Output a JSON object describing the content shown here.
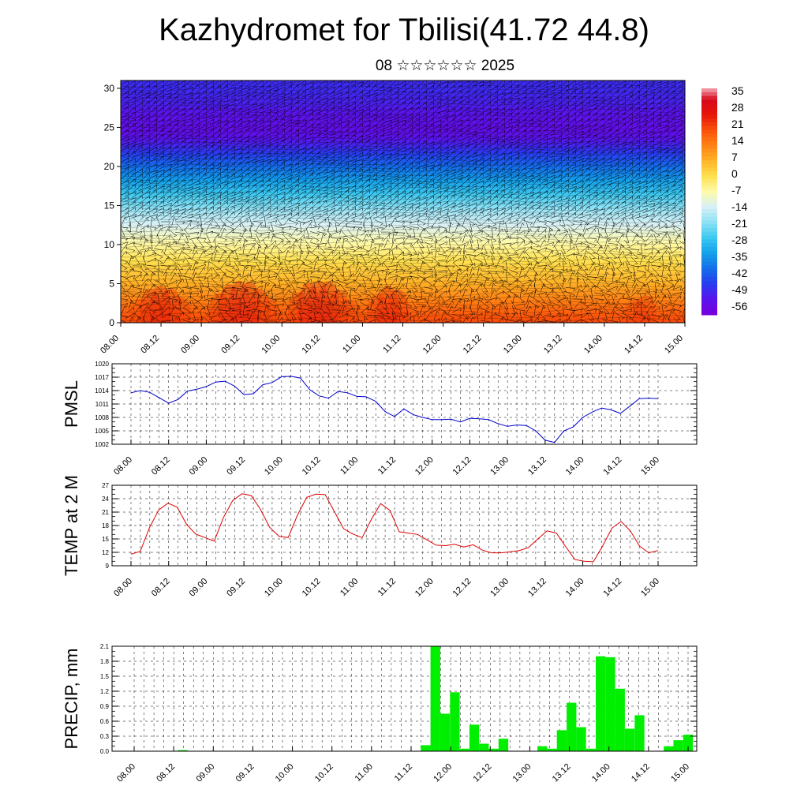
{
  "title": "Kazhydromet for Tbilisi(41.72 44.8)",
  "subtitle": "08 ☆☆☆☆☆☆ 2025",
  "colors": {
    "pmsl": "#0000cc",
    "temp": "#dd0000",
    "precip": "#00ee00",
    "grid": "#000000"
  },
  "chart_data": [
    {
      "type": "heatmap",
      "name": "upper-air-cross-section",
      "xticks": [
        "08.00",
        "08.12",
        "09.00",
        "09.12",
        "10.00",
        "10.12",
        "11.00",
        "11.12",
        "12.00",
        "12.12",
        "13.00",
        "13.12",
        "14.00",
        "14.12",
        "15.00"
      ],
      "yticks": [
        0,
        5,
        10,
        15,
        20,
        25,
        30
      ],
      "ylim": [
        0,
        31
      ],
      "levels": [
        0,
        1,
        2,
        3,
        4,
        5,
        6,
        7,
        8,
        9,
        10,
        11,
        12,
        13,
        14,
        15,
        16,
        17,
        18,
        19,
        20,
        21,
        22,
        23,
        24,
        25,
        26,
        27,
        28,
        29,
        30,
        31
      ],
      "temperature_profile": [
        22,
        20,
        17,
        14,
        11,
        8,
        5,
        3,
        0,
        -3,
        -6,
        -9,
        -12,
        -15,
        -18,
        -22,
        -26,
        -30,
        -34,
        -38,
        -42,
        -46,
        -50,
        -54,
        -57,
        -58,
        -57,
        -56,
        -54,
        -53,
        -52,
        -52
      ],
      "colorbar_labels": [
        "35",
        "28",
        "21",
        "14",
        "7",
        "0",
        "-7",
        "-14",
        "-21",
        "-28",
        "-35",
        "-42",
        "-49",
        "-56"
      ],
      "colorbar_range": [
        -63,
        40
      ]
    },
    {
      "type": "line",
      "name": "PMSL",
      "ylabel": "PMSL",
      "yticks": [
        "1002",
        "1005",
        "1008",
        "1011",
        "1014",
        "1017",
        "1020"
      ],
      "ylim": [
        1002,
        1020
      ],
      "xticks": [
        "08.00",
        "08.12",
        "09.00",
        "09.12",
        "10.00",
        "10.12",
        "11.00",
        "11.12",
        "12.00",
        "12.12",
        "13.00",
        "13.12",
        "14.00",
        "14.12",
        "15.00"
      ],
      "values": [
        1013.5,
        1014,
        1013.6,
        1012.4,
        1011.2,
        1012,
        1013.9,
        1014.3,
        1014.9,
        1015.9,
        1016.1,
        1015,
        1013.1,
        1013.3,
        1015.3,
        1015.8,
        1017.1,
        1017.2,
        1016.8,
        1014.2,
        1012.8,
        1012.3,
        1013.8,
        1013.5,
        1012.7,
        1012.6,
        1011.6,
        1009.3,
        1008.2,
        1009.9,
        1008.6,
        1008,
        1007.5,
        1007.5,
        1007.6,
        1007,
        1007.8,
        1007.7,
        1007.5,
        1006.6,
        1006,
        1006.3,
        1006.2,
        1005,
        1002.9,
        1002.4,
        1005,
        1005.9,
        1008,
        1009.2,
        1010.1,
        1009.7,
        1008.9,
        1010.5,
        1012.2,
        1012.3,
        1012.2
      ]
    },
    {
      "type": "line",
      "name": "TEMP at 2 M",
      "ylabel": "TEMP at 2 M",
      "yticks": [
        "9",
        "12",
        "15",
        "18",
        "21",
        "24",
        "27"
      ],
      "ylim": [
        9,
        27
      ],
      "xticks": [
        "08.00",
        "08.12",
        "09.00",
        "09.12",
        "10.00",
        "10.12",
        "11.00",
        "11.12",
        "12.00",
        "12.12",
        "13.00",
        "13.12",
        "14.00",
        "14.12",
        "15.00"
      ],
      "values": [
        11.6,
        12.2,
        17.5,
        21.5,
        23,
        22.1,
        18.3,
        16.1,
        15.3,
        14.5,
        19.8,
        23.6,
        25.1,
        24.7,
        21.6,
        17.6,
        15.6,
        15.3,
        20.3,
        24.3,
        25,
        24.9,
        21.1,
        17.3,
        16.1,
        15.3,
        19.4,
        22.9,
        21.4,
        16.6,
        16.3,
        16,
        14.8,
        13.6,
        13.5,
        13.8,
        13.2,
        13.7,
        12.5,
        11.9,
        11.9,
        12.1,
        12.4,
        13.1,
        15,
        16.8,
        16.3,
        13.3,
        10.4,
        10,
        9.9,
        13.4,
        17.4,
        18.9,
        16.8,
        13.4,
        11.9,
        12.4
      ]
    },
    {
      "type": "bar",
      "name": "PRECIP, mm",
      "ylabel": "PRECIP, mm",
      "yticks": [
        "0.0",
        "0.3",
        "0.6",
        "0.9",
        "1.2",
        "1.5",
        "1.8",
        "2.1"
      ],
      "ylim": [
        0,
        2.1
      ],
      "xticks": [
        "08.00",
        "08.12",
        "09.00",
        "09.12",
        "10.00",
        "10.12",
        "11.00",
        "11.12",
        "12.00",
        "12.12",
        "13.00",
        "13.12",
        "14.00",
        "14.12",
        "15.00"
      ],
      "values": [
        0,
        0,
        0,
        0,
        0,
        0.02,
        0,
        0,
        0,
        0,
        0,
        0,
        0,
        0,
        0,
        0,
        0,
        0,
        0,
        0,
        0,
        0,
        0,
        0,
        0,
        0,
        0,
        0,
        0,
        0,
        0.12,
        2.1,
        0.75,
        1.18,
        0.05,
        0.53,
        0.15,
        0.05,
        0.25,
        0,
        0,
        0,
        0.1,
        0.05,
        0.42,
        0.97,
        0.48,
        0.05,
        1.9,
        1.88,
        1.25,
        0.45,
        0.72,
        0,
        0,
        0.1,
        0.22,
        0.33
      ]
    }
  ]
}
